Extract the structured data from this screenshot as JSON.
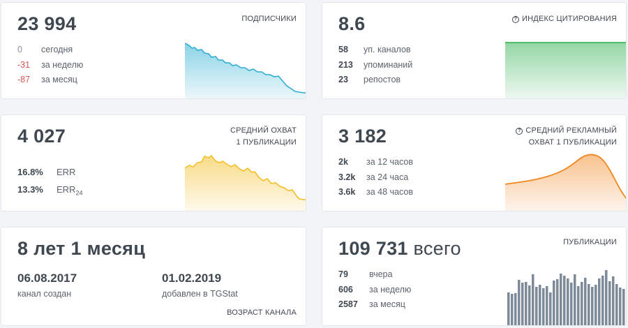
{
  "subscribers": {
    "value": "23 994",
    "label": "ПОДПИСЧИКИ",
    "rows": [
      {
        "v": "0",
        "t": "сегодня"
      },
      {
        "v": "-31",
        "t": "за неделю"
      },
      {
        "v": "-87",
        "t": "за месяц"
      }
    ],
    "color": "#2eaed2"
  },
  "citation": {
    "value": "8.6",
    "label": "ИНДЕКС ЦИТИРОВАНИЯ",
    "rows": [
      {
        "v": "58",
        "t": "уп. каналов"
      },
      {
        "v": "213",
        "t": "упоминаний"
      },
      {
        "v": "23",
        "t": "репостов"
      }
    ],
    "color": "#3cb55a"
  },
  "reach": {
    "value": "4 027",
    "label_line1": "СРЕДНИЙ ОХВАТ",
    "label_line2": "1 ПУБЛИКАЦИИ",
    "err": {
      "v": "16.8%",
      "t": "ERR"
    },
    "err24": {
      "v": "13.3%",
      "t": "ERR",
      "sub": "24"
    },
    "color": "#f3be26"
  },
  "ad_reach": {
    "value": "3 182",
    "label_line1": "СРЕДНИЙ РЕКЛАМНЫЙ",
    "label_line2": "ОХВАТ 1 ПУБЛИКАЦИИ",
    "rows": [
      {
        "v": "2k",
        "t": "за 12 часов"
      },
      {
        "v": "3.2k",
        "t": "за 24 часа"
      },
      {
        "v": "3.6k",
        "t": "за 48 часов"
      }
    ],
    "color": "#f2861f"
  },
  "age": {
    "value": "8 лет 1 месяц",
    "created_date": "06.08.2017",
    "created_caption": "канал создан",
    "added_date": "01.02.2019",
    "added_caption": "добавлен в TGStat",
    "label": "ВОЗРАСТ КАНАЛА"
  },
  "publications": {
    "value": "109 731",
    "suffix": "всего",
    "label": "ПУБЛИКАЦИИ",
    "rows": [
      {
        "v": "79",
        "t": "вчера"
      },
      {
        "v": "606",
        "t": "за неделю"
      },
      {
        "v": "2587",
        "t": "за месяц"
      }
    ],
    "color": "#7d8a99"
  },
  "icons": {
    "info": "question-circle-icon"
  }
}
